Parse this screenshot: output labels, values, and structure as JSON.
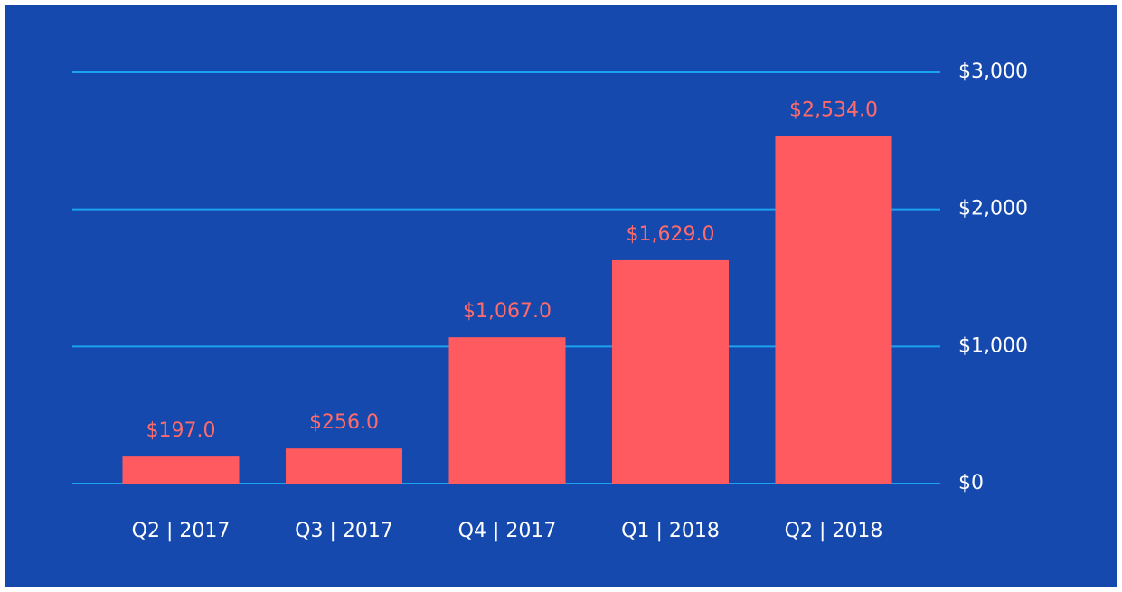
{
  "chart_data": {
    "type": "bar",
    "categories": [
      "Q2 | 2017",
      "Q3 | 2017",
      "Q4 | 2017",
      "Q1 | 2018",
      "Q2 | 2018"
    ],
    "values": [
      197,
      256,
      1067,
      1629,
      2534
    ],
    "value_labels": [
      "$197.0",
      "$256.0",
      "$1,067.0",
      "$1,629.0",
      "$2,534.0"
    ],
    "color": "#ff5a5f",
    "ylim": [
      0,
      3000
    ],
    "yticks": [
      {
        "value": 0,
        "label": "$0"
      },
      {
        "value": 1000,
        "label": "$1,000"
      },
      {
        "value": 2000,
        "label": "$2,000"
      },
      {
        "value": 3000,
        "label": "$3,000"
      }
    ],
    "grid": true
  }
}
